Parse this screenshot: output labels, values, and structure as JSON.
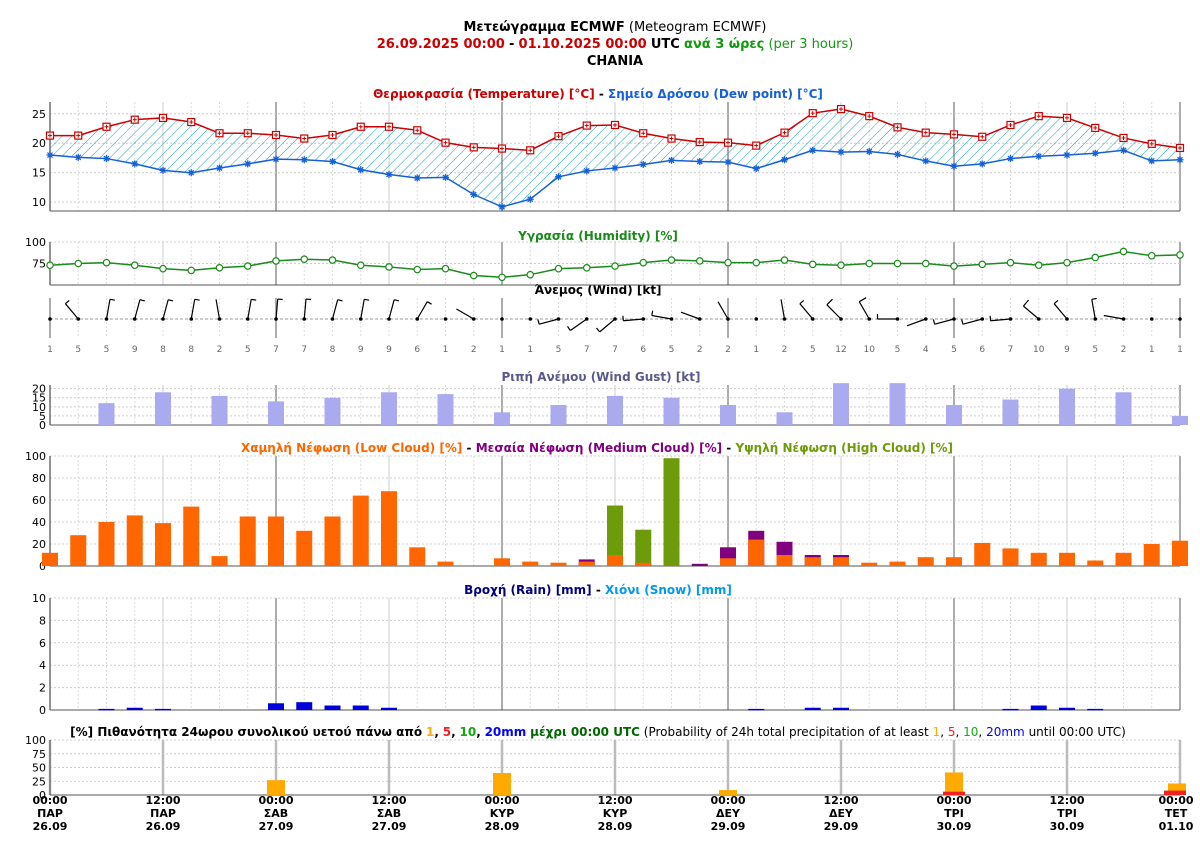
{
  "colors": {
    "temp": "#cc0000",
    "dew": "#1560d8",
    "hatch": "#17a2b8",
    "humidity": "#1a8a1a",
    "wind": "#000000",
    "gust": "#aaaaee",
    "gust_title": "#5a5a8a",
    "low_cloud": "#ff6600",
    "medium_cloud": "#800080",
    "high_cloud": "#6e9b0a",
    "rain": "#0000dd",
    "rain_title": "#000080",
    "snow": "#0099ee",
    "p1": "#ffaa00",
    "p5": "#ee2222",
    "p10": "#11aa11",
    "p20": "#0000ff",
    "green_text": "#119911",
    "grid": "#bbbbbb",
    "day_line": "#888888"
  },
  "header": {
    "title_bold": "Μετεώγραμμα ECMWF",
    "title_normal": "(Meteogram ECMWF)",
    "from": "26.09.2025 00:00",
    "dash": "-",
    "to": "01.10.2025 00:00",
    "utc": "UTC",
    "per_bold": "ανά 3 ώρες",
    "per_normal": "(per 3 hours)",
    "location": "CHANIA"
  },
  "titles": {
    "temp_a": "Θερμοκρασία (Temperature) [°C]",
    "sep": "-",
    "temp_b": "Σημείο Δρόσου (Dew point) [°C]",
    "humidity": "Υγρασία (Humidity) [%]",
    "wind": "Άνεμος (Wind) [kt]",
    "gust": "Ριπή Ανέμου (Wind Gust) [kt]",
    "cloud_low": "Χαμηλή Νέφωση (Low Cloud) [%]",
    "cloud_med": "Μεσαία Νέφωση (Medium Cloud) [%]",
    "cloud_high": "Υψηλή Νέφωση (High Cloud) [%]",
    "rain": "Βροχή (Rain) [mm]",
    "snow": "Χιόνι (Snow) [mm]",
    "prob_a": "[%] Πιθανότητα 24ωρου συνολικού υετού πάνω από",
    "prob_t1": "1",
    "prob_c1": ",",
    "prob_t5": "5",
    "prob_c2": ",",
    "prob_t10": "10",
    "prob_c3": ",",
    "prob_t20": "20mm",
    "prob_b": "μέχρι 00:00 UTC",
    "prob_c": "(Probability of 24h total precipitation of at least",
    "prob_d": "until 00:00 UTC)"
  },
  "chart_data": [
    {
      "type": "line",
      "panel": "temperature",
      "x": [
        "26.09 00",
        "26.09 03",
        "26.09 06",
        "26.09 09",
        "26.09 12",
        "26.09 15",
        "26.09 18",
        "26.09 21",
        "27.09 00",
        "27.09 03",
        "27.09 06",
        "27.09 09",
        "27.09 12",
        "27.09 15",
        "27.09 18",
        "27.09 21",
        "28.09 00",
        "28.09 03",
        "28.09 06",
        "28.09 09",
        "28.09 12",
        "28.09 15",
        "28.09 18",
        "28.09 21",
        "29.09 00",
        "29.09 03",
        "29.09 06",
        "29.09 09",
        "29.09 12",
        "29.09 15",
        "29.09 18",
        "29.09 21",
        "30.09 00",
        "30.09 03",
        "30.09 06",
        "30.09 09",
        "30.09 12",
        "30.09 15",
        "30.09 18",
        "30.09 21",
        "01.10 00"
      ],
      "yticks": [
        10,
        15,
        20,
        25
      ],
      "ylim": [
        8.5,
        27
      ],
      "series": [
        {
          "name": "Θερμοκρασία (Temperature)",
          "values": [
            21.3,
            21.3,
            22.8,
            24.0,
            24.3,
            23.6,
            21.7,
            21.7,
            21.4,
            20.8,
            21.4,
            22.8,
            22.8,
            22.2,
            20.1,
            19.3,
            19.1,
            18.8,
            21.2,
            23.0,
            23.1,
            21.7,
            20.8,
            20.2,
            20.1,
            19.6,
            21.8,
            25.1,
            25.8,
            24.6,
            22.7,
            21.8,
            21.5,
            21.1,
            23.1,
            24.6,
            24.3,
            22.6,
            20.9,
            19.9,
            19.2
          ]
        },
        {
          "name": "Σημείο Δρόσου (Dew point)",
          "values": [
            18.0,
            17.6,
            17.4,
            16.5,
            15.4,
            15.0,
            15.8,
            16.5,
            17.3,
            17.2,
            16.9,
            15.5,
            14.7,
            14.1,
            14.2,
            11.3,
            9.2,
            10.5,
            14.3,
            15.3,
            15.8,
            16.4,
            17.1,
            16.9,
            16.8,
            15.7,
            17.2,
            18.8,
            18.5,
            18.6,
            18.1,
            17.0,
            16.1,
            16.5,
            17.4,
            17.8,
            18.0,
            18.3,
            18.8,
            17.0,
            17.2
          ]
        }
      ]
    },
    {
      "type": "line",
      "panel": "humidity",
      "yticks": [
        75,
        100
      ],
      "ylim": [
        50,
        100
      ],
      "series": [
        {
          "name": "Υγρασία (Humidity)",
          "values": [
            73,
            75,
            76,
            73,
            69,
            67,
            70,
            72,
            78,
            80,
            79,
            73,
            71,
            68,
            69,
            61,
            59,
            62,
            69,
            70,
            72,
            76,
            79,
            78,
            76,
            76,
            79,
            74,
            73,
            75,
            75,
            75,
            72,
            74,
            76,
            73,
            76,
            82,
            89,
            84,
            85
          ]
        }
      ]
    },
    {
      "type": "scatter",
      "panel": "wind",
      "labels": [
        1,
        5,
        5,
        9,
        8,
        8,
        2,
        5,
        7,
        7,
        8,
        9,
        9,
        6,
        1,
        2,
        1,
        1,
        5,
        7,
        7,
        6,
        5,
        2,
        2,
        1,
        2,
        5,
        12,
        10,
        5,
        4,
        5,
        6,
        7,
        10,
        9,
        5,
        2,
        1,
        1
      ],
      "direction_deg": [
        340,
        320,
        10,
        15,
        15,
        10,
        350,
        10,
        5,
        5,
        15,
        10,
        15,
        30,
        0,
        300,
        300,
        290,
        255,
        235,
        230,
        265,
        280,
        290,
        330,
        0,
        350,
        320,
        315,
        330,
        270,
        250,
        255,
        255,
        265,
        310,
        320,
        350,
        280,
        290,
        270
      ]
    },
    {
      "type": "bar",
      "panel": "gust",
      "yticks": [
        0,
        5,
        10,
        15,
        20
      ],
      "ylim": [
        0,
        22
      ],
      "values": [
        null,
        null,
        12,
        null,
        18,
        null,
        16,
        null,
        13,
        null,
        15,
        null,
        18,
        null,
        17,
        null,
        7,
        null,
        11,
        null,
        16,
        null,
        15,
        null,
        11,
        null,
        7,
        null,
        23,
        null,
        23,
        null,
        11,
        null,
        14,
        null,
        20,
        null,
        18,
        null,
        5
      ]
    },
    {
      "type": "bar",
      "panel": "clouds",
      "yticks": [
        0,
        20,
        40,
        60,
        80,
        100
      ],
      "ylim": [
        0,
        100
      ],
      "series": [
        {
          "name": "Χαμηλή Νέφωση (Low Cloud)",
          "values": [
            12,
            28,
            40,
            46,
            39,
            54,
            9,
            45,
            45,
            32,
            45,
            64,
            68,
            17,
            4,
            0,
            7,
            4,
            3,
            4,
            10,
            3,
            0,
            0,
            7,
            24,
            10,
            8,
            8,
            3,
            4,
            8,
            8,
            21,
            16,
            12,
            12,
            5,
            12,
            20,
            23
          ]
        },
        {
          "name": "Μεσαία Νέφωση (Medium Cloud)",
          "values": [
            0,
            0,
            0,
            0,
            0,
            0,
            0,
            0,
            0,
            0,
            0,
            0,
            0,
            0,
            0,
            0,
            0,
            0,
            0,
            6,
            0,
            2,
            0,
            2,
            17,
            32,
            22,
            10,
            10,
            0,
            0,
            0,
            0,
            0,
            0,
            0,
            0,
            0,
            0,
            0,
            0
          ]
        },
        {
          "name": "Υψηλή Νέφωση (High Cloud)",
          "values": [
            0,
            0,
            0,
            0,
            0,
            0,
            0,
            0,
            0,
            0,
            0,
            0,
            0,
            0,
            0,
            0,
            0,
            0,
            0,
            0,
            55,
            33,
            98,
            0,
            0,
            0,
            0,
            0,
            0,
            0,
            0,
            0,
            0,
            0,
            0,
            0,
            0,
            0,
            0,
            0,
            0
          ]
        }
      ]
    },
    {
      "type": "bar",
      "panel": "rain",
      "yticks": [
        0,
        2,
        4,
        6,
        8,
        10
      ],
      "ylim": [
        0,
        10
      ],
      "series": [
        {
          "name": "Βροχή (Rain)",
          "values": [
            0,
            0,
            0.1,
            0.2,
            0.1,
            0,
            0,
            0,
            0.6,
            0.7,
            0.4,
            0.4,
            0.2,
            0,
            0,
            0,
            0,
            0,
            0,
            0,
            0,
            0,
            0,
            0,
            0,
            0.1,
            0,
            0.2,
            0.2,
            0,
            0,
            0,
            0,
            0,
            0.1,
            0.4,
            0.2,
            0.1,
            0,
            0,
            0
          ]
        },
        {
          "name": "Χιόνι (Snow)",
          "values": [
            0,
            0,
            0,
            0,
            0,
            0,
            0,
            0,
            0,
            0,
            0,
            0,
            0,
            0,
            0,
            0,
            0,
            0,
            0,
            0,
            0,
            0,
            0,
            0,
            0,
            0,
            0,
            0,
            0,
            0,
            0,
            0,
            0,
            0,
            0,
            0,
            0,
            0,
            0,
            0,
            0
          ]
        }
      ]
    },
    {
      "type": "bar",
      "panel": "probability",
      "yticks": [
        0,
        25,
        50,
        75,
        100
      ],
      "ylim": [
        0,
        100
      ],
      "x": [
        "27.09 00:00",
        "28.09 00:00",
        "29.09 00:00",
        "30.09 00:00",
        "01.10 00:00"
      ],
      "series": [
        {
          "name": "1",
          "values": [
            27,
            40,
            9,
            41,
            21
          ]
        },
        {
          "name": "5",
          "values": [
            0,
            0,
            0,
            6,
            8
          ]
        },
        {
          "name": "10",
          "values": [
            0,
            0,
            0,
            0,
            0
          ]
        },
        {
          "name": "20mm",
          "values": [
            0,
            0,
            0,
            0,
            0
          ]
        }
      ]
    }
  ],
  "x_axis": {
    "labels": [
      {
        "time": "00:00",
        "day": "ΠΑΡ",
        "date": "26.09"
      },
      {
        "time": "12:00",
        "day": "ΠΑΡ",
        "date": "26.09"
      },
      {
        "time": "00:00",
        "day": "ΣΑΒ",
        "date": "27.09"
      },
      {
        "time": "12:00",
        "day": "ΣΑΒ",
        "date": "27.09"
      },
      {
        "time": "00:00",
        "day": "ΚΥΡ",
        "date": "28.09"
      },
      {
        "time": "12:00",
        "day": "ΚΥΡ",
        "date": "28.09"
      },
      {
        "time": "00:00",
        "day": "ΔΕΥ",
        "date": "29.09"
      },
      {
        "time": "12:00",
        "day": "ΔΕΥ",
        "date": "29.09"
      },
      {
        "time": "00:00",
        "day": "ΤΡΙ",
        "date": "30.09"
      },
      {
        "time": "12:00",
        "day": "ΤΡΙ",
        "date": "30.09"
      },
      {
        "time": "00:00",
        "day": "ΤΕΤ",
        "date": "01.10"
      }
    ]
  }
}
